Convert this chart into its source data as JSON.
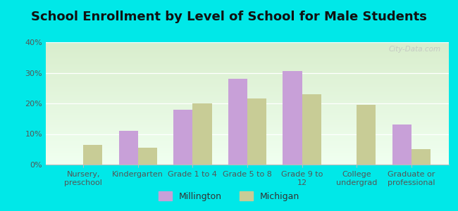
{
  "title": "School Enrollment by Level of School for Male Students",
  "categories": [
    "Nursery,\npreschool",
    "Kindergarten",
    "Grade 1 to 4",
    "Grade 5 to 8",
    "Grade 9 to\n12",
    "College\nundergrad",
    "Graduate or\nprofessional"
  ],
  "millington": [
    0,
    11,
    18,
    28,
    30.5,
    0,
    13
  ],
  "michigan": [
    6.5,
    5.5,
    20,
    21.5,
    23,
    19.5,
    5
  ],
  "millington_color": "#c8a0d8",
  "michigan_color": "#c8cc96",
  "background_color": "#00e8e8",
  "gradient_top": "#f0fff0",
  "gradient_bottom": "#d8edcc",
  "ylim": [
    0,
    40
  ],
  "yticks": [
    0,
    10,
    20,
    30,
    40
  ],
  "ytick_labels": [
    "0%",
    "10%",
    "20%",
    "30%",
    "40%"
  ],
  "bar_width": 0.35,
  "legend_millington": "Millington",
  "legend_michigan": "Michigan",
  "title_fontsize": 13,
  "tick_fontsize": 8,
  "legend_fontsize": 9,
  "watermark": "City-Data.com"
}
